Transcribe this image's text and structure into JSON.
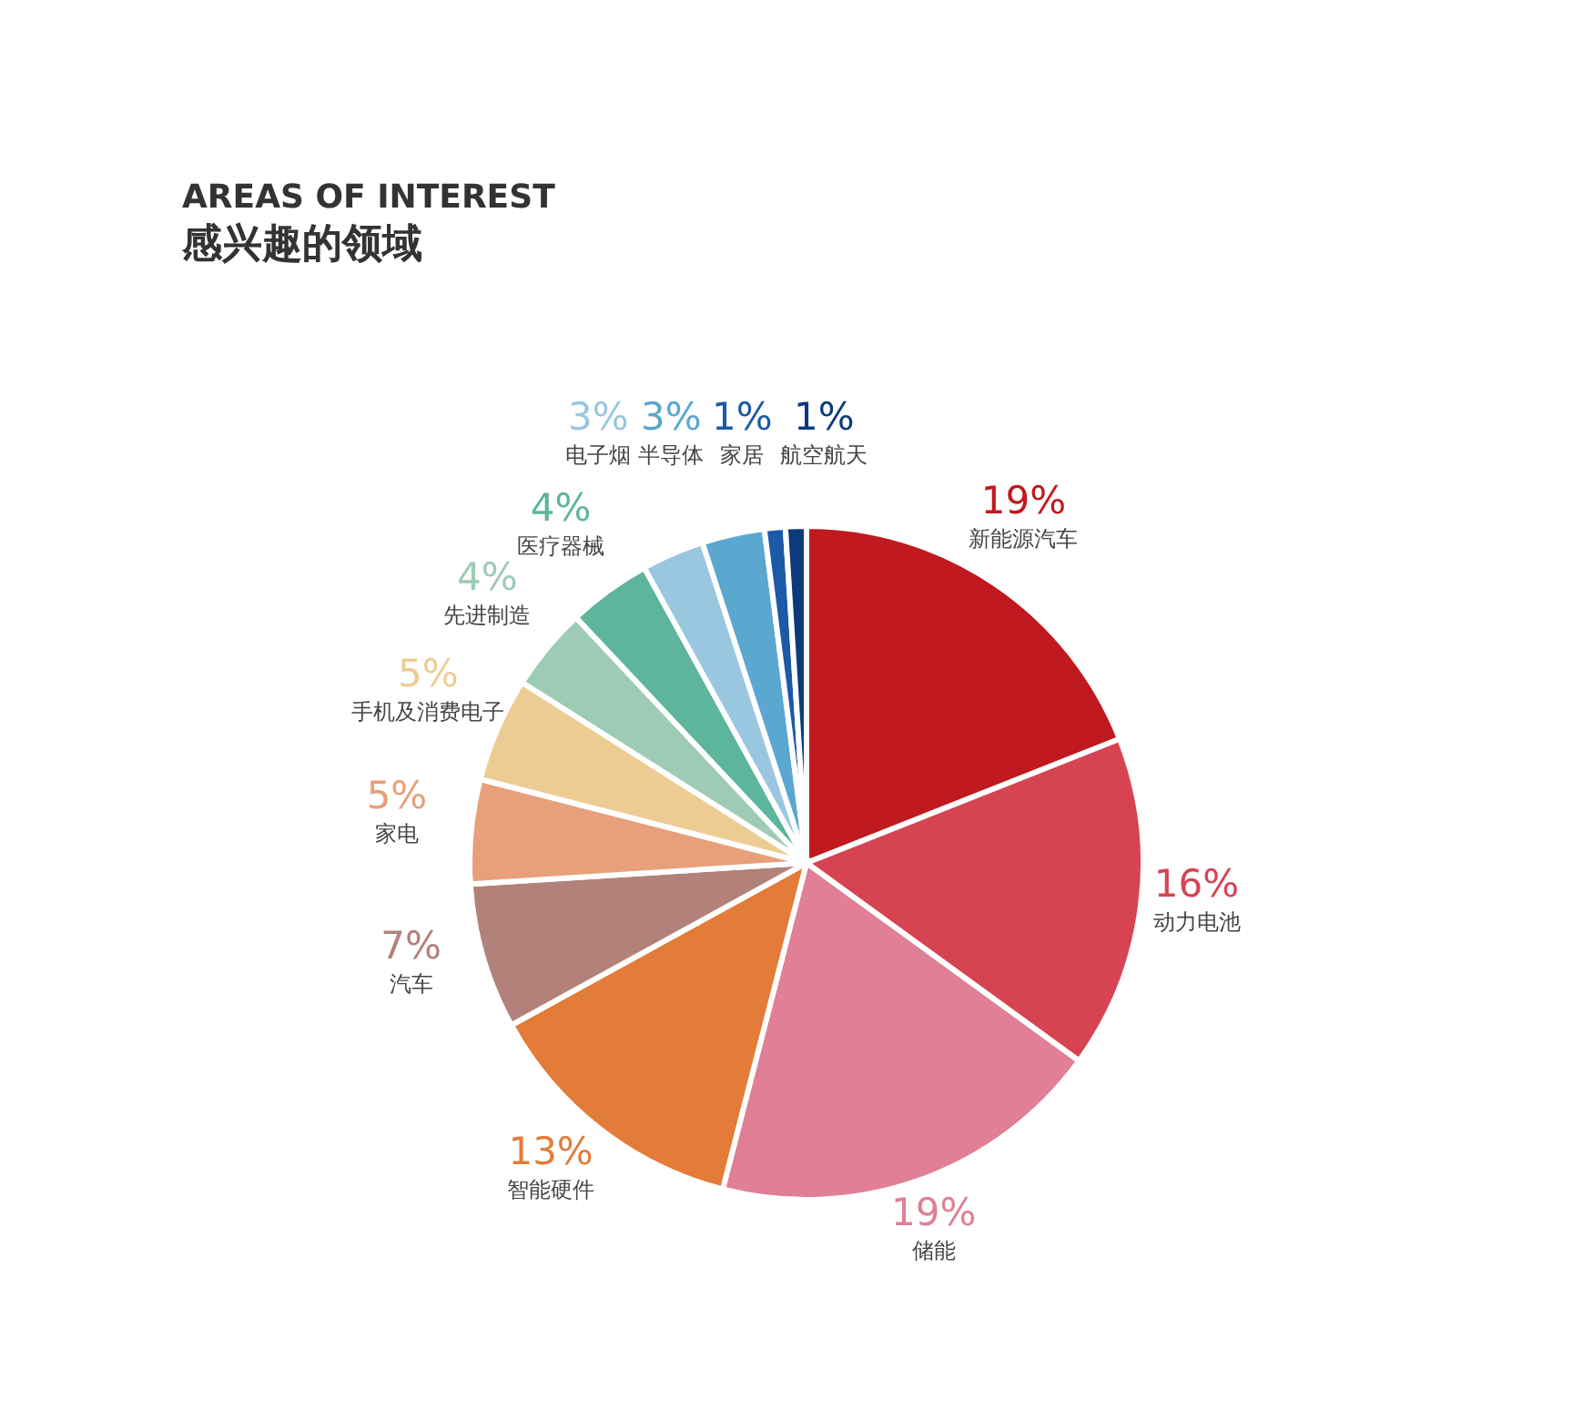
{
  "chart_data": {
    "type": "pie",
    "title": "AREAS OF INTEREST",
    "subtitle": "感兴趣的领域",
    "categories": [
      "新能源汽车",
      "动力电池",
      "储能",
      "智能硬件",
      "汽车",
      "家电",
      "手机及消费电子",
      "先进制造",
      "医疗器械",
      "电子烟",
      "半导体",
      "家居",
      "航空航天"
    ],
    "values": [
      19,
      16,
      19,
      13,
      7,
      5,
      5,
      4,
      4,
      3,
      3,
      1,
      1
    ],
    "value_labels": [
      "19%",
      "16%",
      "19%",
      "13%",
      "7%",
      "5%",
      "5%",
      "4%",
      "4%",
      "3%",
      "3%",
      "1%",
      "1%"
    ],
    "colors": [
      "#c0191f",
      "#d64452",
      "#e07f95",
      "#e27c38",
      "#b2817a",
      "#e8a07a",
      "#edcc94",
      "#9ecbb5",
      "#5db59c",
      "#9ac7e0",
      "#5aa7d0",
      "#1c5aa8",
      "#0d3a7c"
    ]
  }
}
